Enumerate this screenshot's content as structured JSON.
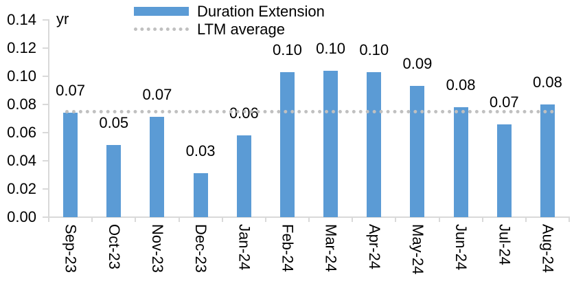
{
  "chart_data": {
    "type": "bar",
    "title": "",
    "unit": "yr",
    "categories": [
      "Sep-23",
      "Oct-23",
      "Nov-23",
      "Dec-23",
      "Jan-24",
      "Feb-24",
      "Mar-24",
      "Apr-24",
      "May-24",
      "Jun-24",
      "Jul-24",
      "Aug-24"
    ],
    "series": [
      {
        "name": "Duration Extension",
        "color": "#5B9BD5",
        "values": [
          0.074,
          0.051,
          0.071,
          0.031,
          0.058,
          0.103,
          0.104,
          0.103,
          0.093,
          0.078,
          0.066,
          0.08
        ],
        "data_labels": [
          "0.07",
          "0.05",
          "0.07",
          "0.03",
          "0.06",
          "0.10",
          "0.10",
          "0.10",
          "0.09",
          "0.08",
          "0.07",
          "0.08"
        ]
      }
    ],
    "ltm_average": {
      "label": "LTM average",
      "value": 0.075,
      "style": "dotted",
      "color": "#C0C0C0"
    },
    "ylim": [
      0,
      0.14
    ],
    "y_tick_step": 0.02,
    "y_tick_labels": [
      "0.00",
      "0.02",
      "0.04",
      "0.06",
      "0.08",
      "0.10",
      "0.12",
      "0.14"
    ],
    "grid": false,
    "legend_position": "top-center",
    "axis_color": "#D9D9D9",
    "text_color": "#000000"
  }
}
